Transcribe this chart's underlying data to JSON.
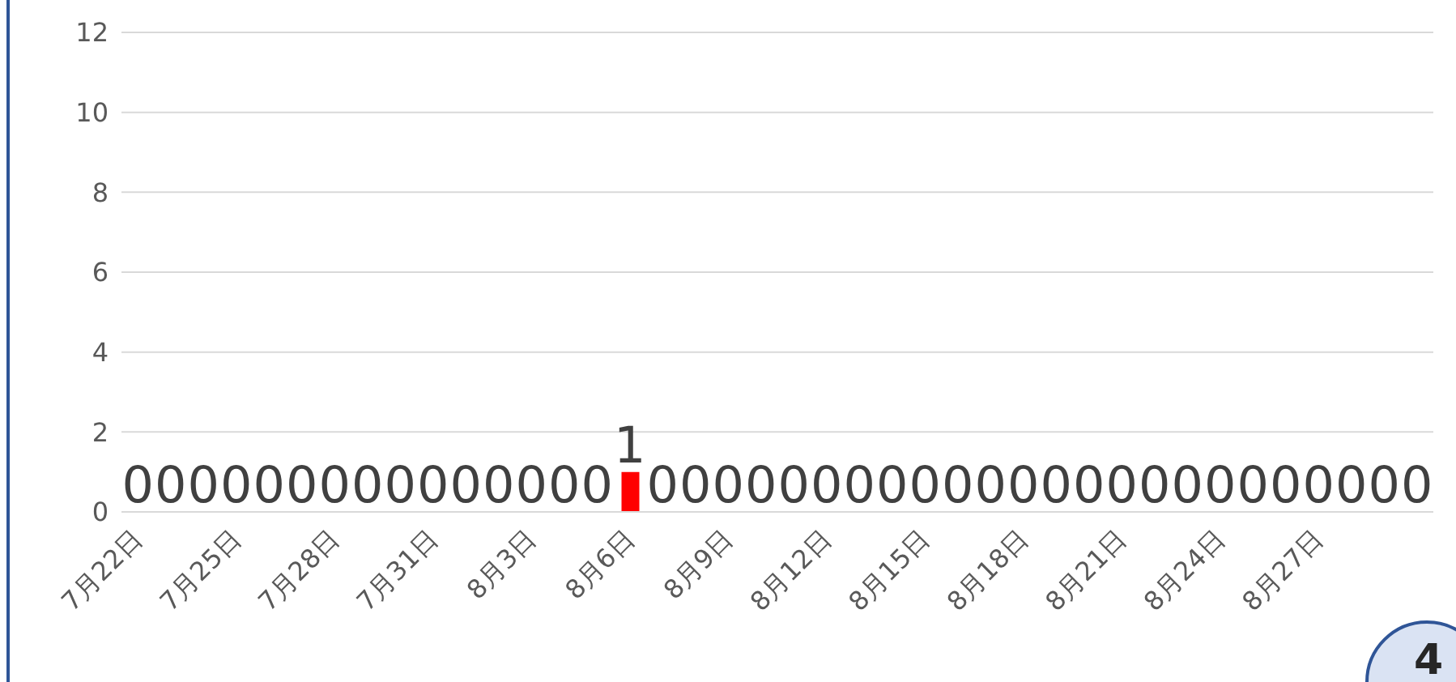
{
  "chart_data": {
    "type": "bar",
    "categories": [
      "7月22日",
      null,
      null,
      "7月25日",
      null,
      null,
      "7月28日",
      null,
      null,
      "7月31日",
      null,
      null,
      "8月3日",
      null,
      null,
      "8月6日",
      null,
      null,
      "8月9日",
      null,
      null,
      "8月12日",
      null,
      null,
      "8月15日",
      null,
      null,
      "8月18日",
      null,
      null,
      "8月21日",
      null,
      null,
      "8月24日",
      null,
      null,
      "8月27日",
      null,
      null,
      null
    ],
    "values": [
      0,
      0,
      0,
      0,
      0,
      0,
      0,
      0,
      0,
      0,
      0,
      0,
      0,
      0,
      0,
      1,
      0,
      0,
      0,
      0,
      0,
      0,
      0,
      0,
      0,
      0,
      0,
      0,
      0,
      0,
      0,
      0,
      0,
      0,
      0,
      0,
      0,
      0,
      0,
      0
    ],
    "color": "#ff0000",
    "ylim": [
      0,
      12
    ],
    "yticks": [
      0,
      2,
      4,
      6,
      8,
      10,
      12
    ],
    "grid": "y",
    "legend": false,
    "data_labels": true,
    "annotations": [
      "4"
    ]
  }
}
